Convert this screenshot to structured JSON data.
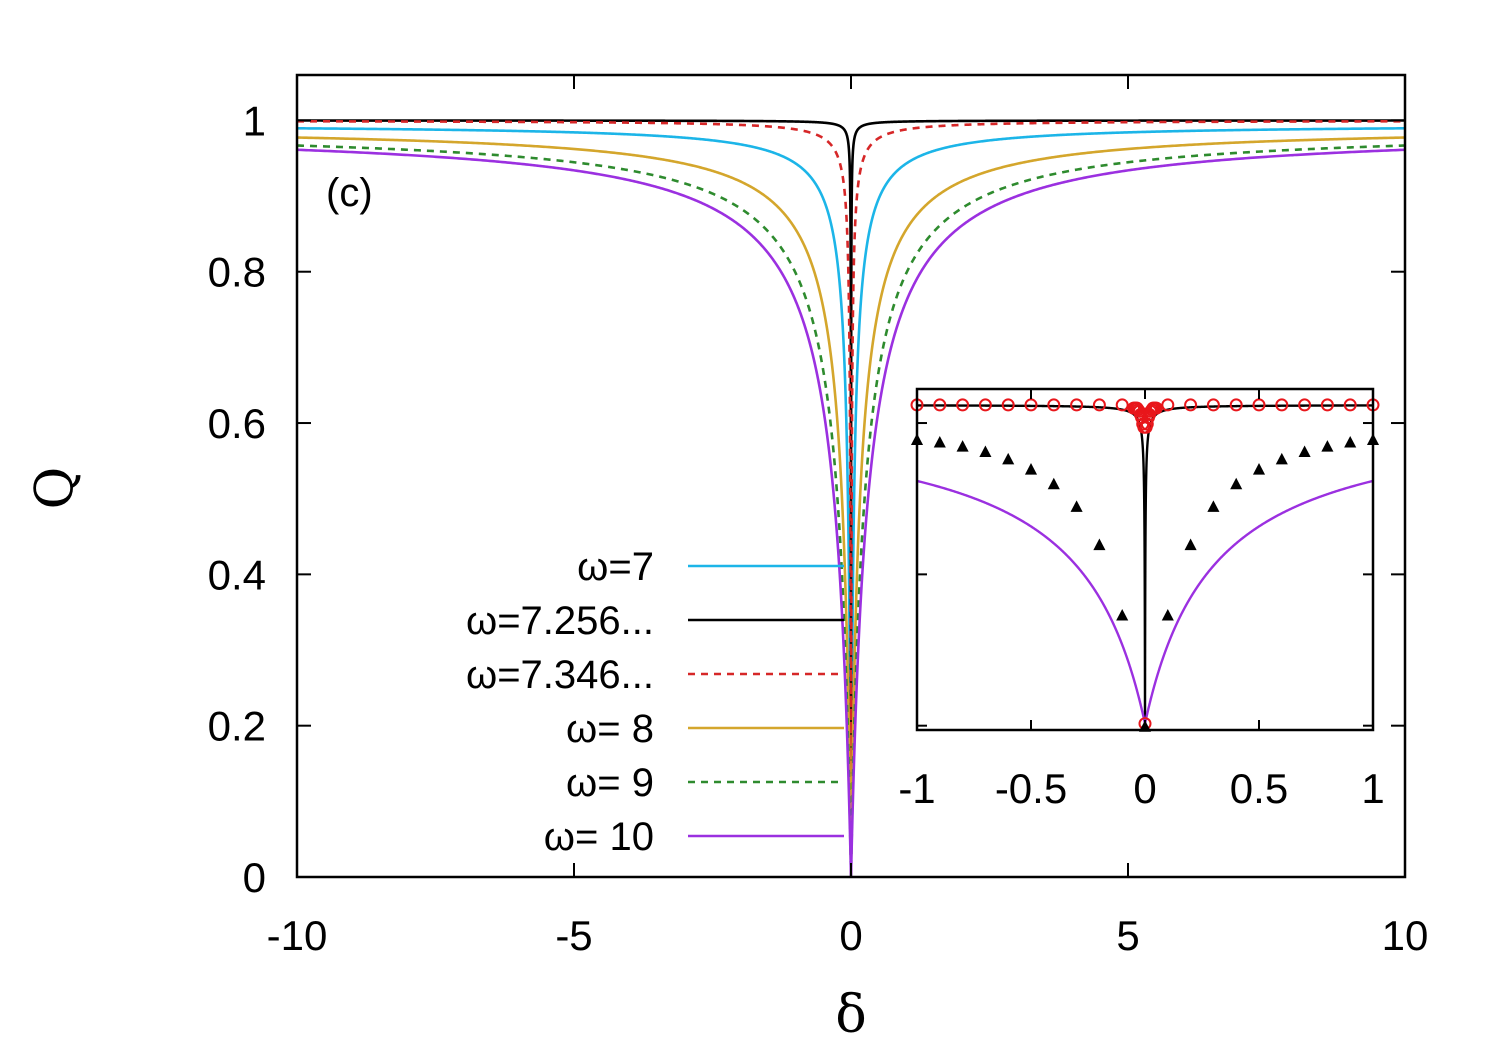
{
  "chart_data": [
    {
      "type": "line",
      "panel_label": "(c)",
      "xlabel": "δ",
      "ylabel": "Q",
      "xlim": [
        -10,
        10
      ],
      "ylim": [
        0,
        1.06
      ],
      "x_ticks": [
        -10,
        -5,
        0,
        5,
        10
      ],
      "x_tick_labels": [
        "-10",
        "-5",
        "0",
        "5",
        "10"
      ],
      "y_ticks": [
        0,
        0.2,
        0.4,
        0.6,
        0.8,
        1
      ],
      "y_tick_labels": [
        "0",
        "0.2",
        "0.4",
        "0.6",
        "0.8",
        "1"
      ],
      "legend_position": "lower-left",
      "series": [
        {
          "name": "ω=7",
          "color": "#1cb5e8",
          "dash": "solid",
          "amplitude": 0.995,
          "width": 0.055
        },
        {
          "name": "ω=7.256...",
          "color": "#000000",
          "dash": "solid",
          "amplitude": 1.0,
          "width": 0.0015
        },
        {
          "name": "ω=7.346...",
          "color": "#d62728",
          "dash": "dashed",
          "amplitude": 1.0,
          "width": 0.012
        },
        {
          "name": "ω= 8",
          "color": "#d4a62c",
          "dash": "solid",
          "amplitude": 0.993,
          "width": 0.16
        },
        {
          "name": "ω= 9",
          "color": "#2e8b2e",
          "dash": "dashed",
          "amplitude": 0.99,
          "width": 0.24
        },
        {
          "name": "ω= 10",
          "color": "#9b30e0",
          "dash": "solid",
          "amplitude": 0.99,
          "width": 0.3
        }
      ]
    },
    {
      "type": "line",
      "role": "inset",
      "xlim": [
        -1,
        1
      ],
      "ylim": [
        -0.02,
        1.05
      ],
      "x_ticks": [
        -1,
        -0.5,
        0,
        0.5,
        1
      ],
      "x_tick_labels": [
        "-1",
        "-0.5",
        "0",
        "0.5",
        "1"
      ],
      "series": [
        {
          "name": "ω=7.256... (line)",
          "color": "#000000",
          "amplitude": 1.0,
          "width": 0.0015
        },
        {
          "name": "ω= 10 (line)",
          "color": "#9b30e0",
          "amplitude": 0.99,
          "width": 0.3
        },
        {
          "name": "circle markers",
          "color": "#e8161b",
          "marker": "circle",
          "x": [
            -1,
            -0.9,
            -0.8,
            -0.7,
            -0.6,
            -0.5,
            -0.4,
            -0.3,
            -0.2,
            -0.1,
            -0.05,
            -0.045,
            -0.04,
            -0.035,
            -0.03,
            -0.025,
            -0.02,
            -0.015,
            -0.01,
            -0.005,
            0,
            0.005,
            0.01,
            0.015,
            0.02,
            0.025,
            0.03,
            0.035,
            0.04,
            0.045,
            0.05,
            0.1,
            0.2,
            0.3,
            0.4,
            0.5,
            0.6,
            0.7,
            0.8,
            0.9,
            1
          ],
          "y": [
            1,
            1,
            1,
            1,
            1,
            1,
            1,
            1,
            1,
            1,
            0.99,
            0.99,
            0.99,
            0.99,
            0.985,
            0.98,
            0.97,
            0.96,
            0.94,
            0.93,
            0,
            0.93,
            0.94,
            0.96,
            0.97,
            0.98,
            0.985,
            0.99,
            0.99,
            0.99,
            0.99,
            1,
            1,
            1,
            1,
            1,
            1,
            1,
            1,
            1,
            1
          ]
        },
        {
          "name": "triangle markers",
          "color": "#000000",
          "marker": "triangle",
          "x": [
            -1,
            -0.9,
            -0.8,
            -0.7,
            -0.6,
            -0.5,
            -0.4,
            -0.3,
            -0.2,
            -0.1,
            0,
            0.1,
            0.2,
            0.3,
            0.4,
            0.5,
            0.6,
            0.7,
            0.8,
            0.9,
            1
          ],
          "y": [
            0.89,
            0.882,
            0.869,
            0.852,
            0.829,
            0.797,
            0.751,
            0.68,
            0.56,
            0.339,
            -0.01,
            0.339,
            0.56,
            0.68,
            0.751,
            0.797,
            0.829,
            0.852,
            0.869,
            0.882,
            0.89
          ]
        }
      ]
    }
  ]
}
